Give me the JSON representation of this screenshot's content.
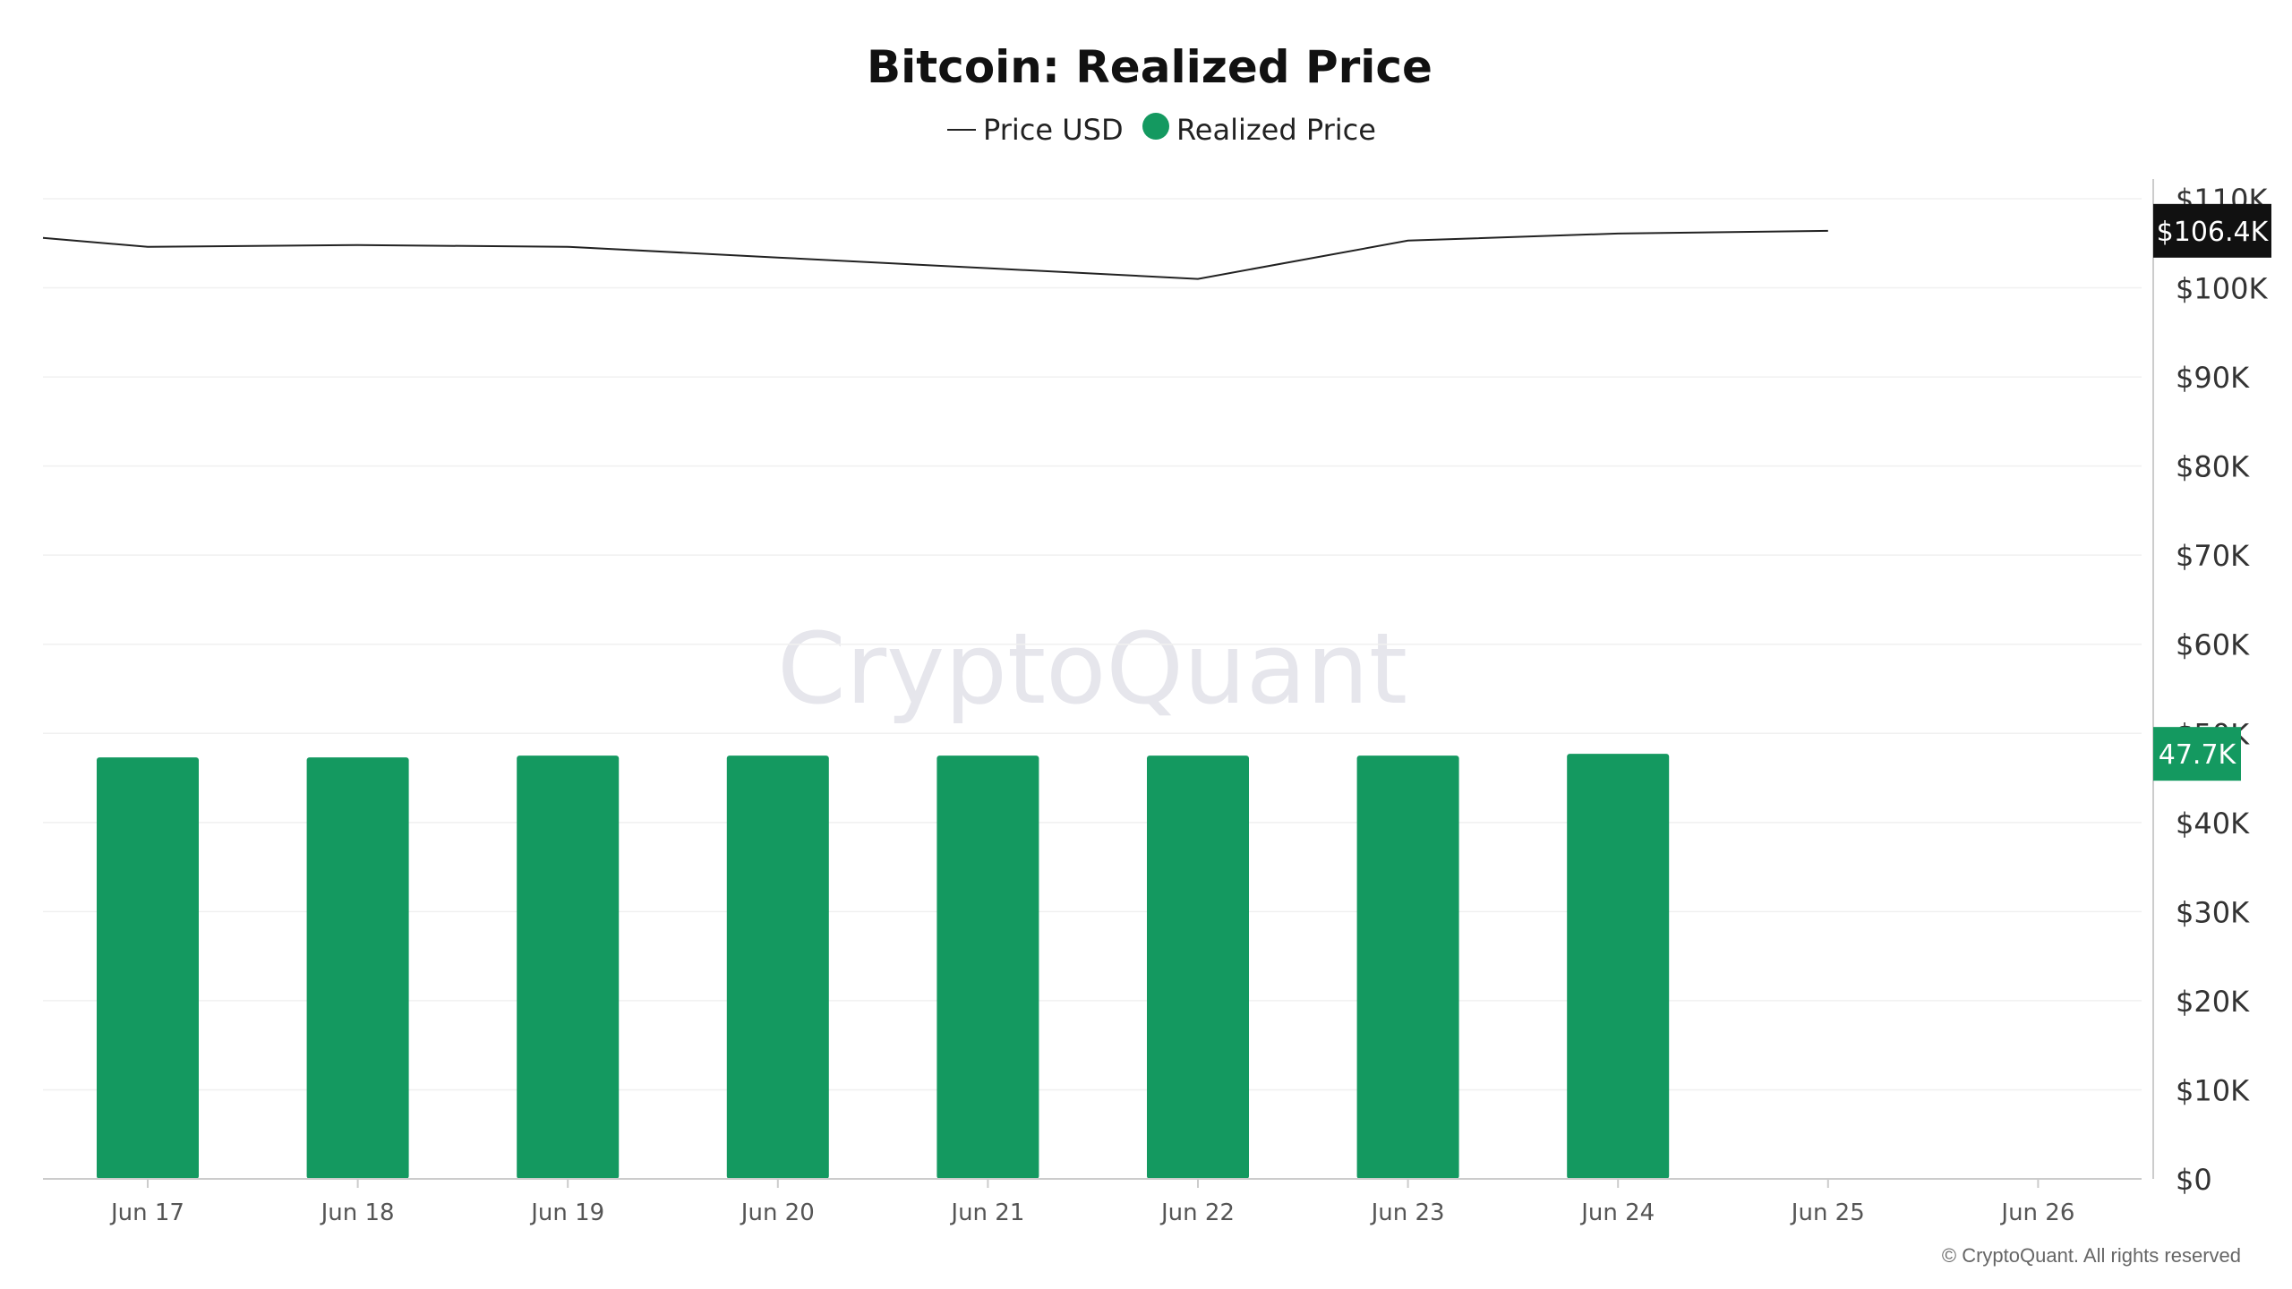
{
  "watermark": "CryptoQuant",
  "credit": "© CryptoQuant. All rights reserved",
  "chart_data": {
    "type": "bar",
    "title": "Bitcoin: Realized Price",
    "categories": [
      "Jun 17",
      "Jun 18",
      "Jun 19",
      "Jun 20",
      "Jun 21",
      "Jun 22",
      "Jun 23",
      "Jun 24",
      "Jun 25",
      "Jun 26"
    ],
    "ylim": [
      0,
      110000
    ],
    "yticks": [
      {
        "value": 0,
        "label": "$0"
      },
      {
        "value": 10000,
        "label": "$10K"
      },
      {
        "value": 20000,
        "label": "$20K"
      },
      {
        "value": 30000,
        "label": "$30K"
      },
      {
        "value": 40000,
        "label": "$40K"
      },
      {
        "value": 50000,
        "label": "$50K"
      },
      {
        "value": 60000,
        "label": "$60K"
      },
      {
        "value": 70000,
        "label": "$70K"
      },
      {
        "value": 80000,
        "label": "$80K"
      },
      {
        "value": 90000,
        "label": "$90K"
      },
      {
        "value": 100000,
        "label": "$100K"
      },
      {
        "value": 110000,
        "label": "$110K"
      }
    ],
    "grid": true,
    "legend_position": "top-center",
    "series": [
      {
        "name": "Price USD",
        "type": "line",
        "color": "#222222",
        "x_start": "Jun 16",
        "x": [
          "Jun 16",
          "Jun 17",
          "Jun 18",
          "Jun 19",
          "Jun 20",
          "Jun 21",
          "Jun 22",
          "Jun 23",
          "Jun 24",
          "Jun 25"
        ],
        "values": [
          105600,
          104600,
          104800,
          104600,
          103400,
          102200,
          101000,
          105300,
          106100,
          106400
        ],
        "last_value_label": "$106.4K"
      },
      {
        "name": "Realized Price",
        "type": "bar",
        "color": "#149960",
        "x": [
          "Jun 17",
          "Jun 18",
          "Jun 19",
          "Jun 20",
          "Jun 21",
          "Jun 22",
          "Jun 23",
          "Jun 24"
        ],
        "values": [
          47300,
          47300,
          47500,
          47500,
          47500,
          47500,
          47500,
          47700
        ],
        "last_value_label": "47.7K"
      }
    ]
  }
}
